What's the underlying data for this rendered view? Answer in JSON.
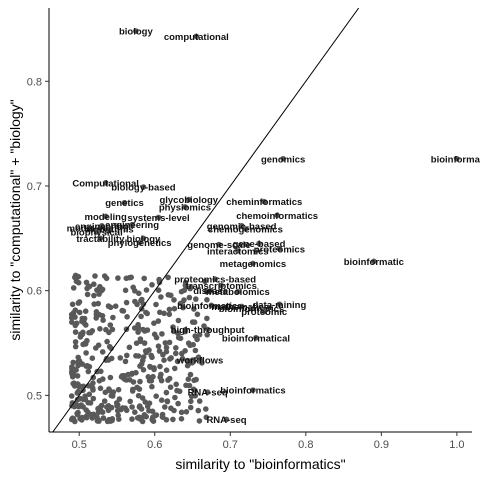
{
  "chart_data": {
    "type": "scatter",
    "xlabel": "similarity to \"bioinformatics\"",
    "ylabel": "similarity to \"computational\" + \"biology\"",
    "xlim": [
      0.46,
      1.02
    ],
    "ylim": [
      0.465,
      0.87
    ],
    "x_ticks": [
      "0.5",
      "0.6",
      "0.7",
      "0.8",
      "0.9",
      "1.0"
    ],
    "y_ticks": [
      "0.5",
      "0.6",
      "0.7",
      "0.8"
    ],
    "x_tick_values": [
      0.5,
      0.6,
      0.7,
      0.8,
      0.9,
      1.0
    ],
    "y_tick_values": [
      0.5,
      0.6,
      0.7,
      0.8
    ],
    "reference_line": "y = x",
    "point_color": "#595959",
    "labeled_points": [
      {
        "label": "biology",
        "x": 0.575,
        "y": 0.848
      },
      {
        "label": "computational",
        "x": 0.655,
        "y": 0.843
      },
      {
        "label": "bioinformat",
        "x": 1.0,
        "y": 0.726
      },
      {
        "label": "genomics",
        "x": 0.77,
        "y": 0.726
      },
      {
        "label": "Computational",
        "x": 0.535,
        "y": 0.703
      },
      {
        "label": "biology-based",
        "x": 0.585,
        "y": 0.699
      },
      {
        "label": "glycobiology",
        "x": 0.645,
        "y": 0.687
      },
      {
        "label": "cheminformatics",
        "x": 0.745,
        "y": 0.685
      },
      {
        "label": "genetics",
        "x": 0.56,
        "y": 0.684
      },
      {
        "label": "physiomics",
        "x": 0.64,
        "y": 0.68
      },
      {
        "label": "chemoinformatics",
        "x": 0.762,
        "y": 0.672
      },
      {
        "label": "modeling",
        "x": 0.535,
        "y": 0.671
      },
      {
        "label": "systems-level",
        "x": 0.605,
        "y": 0.67
      },
      {
        "label": "genomic-based",
        "x": 0.715,
        "y": 0.662
      },
      {
        "label": "chemogenomics",
        "x": 0.72,
        "y": 0.659
      },
      {
        "label": "engineering",
        "x": 0.57,
        "y": 0.663
      },
      {
        "label": "engineering",
        "x": 0.53,
        "y": 0.662
      },
      {
        "label": "modelling",
        "x": 0.513,
        "y": 0.66
      },
      {
        "label": "algorithms",
        "x": 0.54,
        "y": 0.659
      },
      {
        "label": "biophysical",
        "x": 0.523,
        "y": 0.656
      },
      {
        "label": "tractability",
        "x": 0.528,
        "y": 0.65
      },
      {
        "label": "biology",
        "x": 0.585,
        "y": 0.65
      },
      {
        "label": "phylogenetics",
        "x": 0.58,
        "y": 0.646
      },
      {
        "label": "genome-scale",
        "x": 0.685,
        "y": 0.644
      },
      {
        "label": "gene-based",
        "x": 0.738,
        "y": 0.645
      },
      {
        "label": "interactomics",
        "x": 0.71,
        "y": 0.638
      },
      {
        "label": "proteomics",
        "x": 0.765,
        "y": 0.64
      },
      {
        "label": "metagenomics",
        "x": 0.73,
        "y": 0.626
      },
      {
        "label": "bioinformatic",
        "x": 0.89,
        "y": 0.628
      },
      {
        "label": "proteomics-based",
        "x": 0.68,
        "y": 0.611
      },
      {
        "label": "transcriptomics",
        "x": 0.688,
        "y": 0.605
      },
      {
        "label": "disease",
        "x": 0.674,
        "y": 0.6
      },
      {
        "label": "metabolomics",
        "x": 0.71,
        "y": 0.599
      },
      {
        "label": "bioinformatics-",
        "x": 0.675,
        "y": 0.586
      },
      {
        "label": "data-mining",
        "x": 0.765,
        "y": 0.587
      },
      {
        "label": "mathematical",
        "x": 0.715,
        "y": 0.585
      },
      {
        "label": "bioinformatics",
        "x": 0.728,
        "y": 0.583
      },
      {
        "label": "proteomic",
        "x": 0.745,
        "y": 0.58
      },
      {
        "label": "high-throughput",
        "x": 0.67,
        "y": 0.563
      },
      {
        "label": "bioinformatical",
        "x": 0.734,
        "y": 0.555
      },
      {
        "label": "workflows",
        "x": 0.66,
        "y": 0.534
      },
      {
        "label": "bioinformatics",
        "x": 0.73,
        "y": 0.505
      },
      {
        "label": "RNA-seq",
        "x": 0.67,
        "y": 0.503
      },
      {
        "label": "RNA-seq",
        "x": 0.695,
        "y": 0.477
      }
    ]
  }
}
